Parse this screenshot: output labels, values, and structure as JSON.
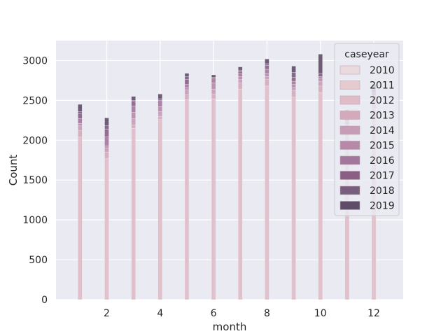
{
  "chart_data": {
    "type": "bar",
    "stacked": true,
    "xlabel": "month",
    "ylabel": "Count",
    "xlim": [
      0.1,
      13.1
    ],
    "ylim": [
      0,
      3250
    ],
    "xticks": [
      2,
      4,
      6,
      8,
      10,
      12
    ],
    "yticks": [
      0,
      500,
      1000,
      1500,
      2000,
      2500,
      3000
    ],
    "grid": true,
    "background": "#eaeaf2",
    "legend": {
      "title": "caseyear",
      "placement": "top-right",
      "entries": [
        "2010",
        "2011",
        "2012",
        "2013",
        "2014",
        "2015",
        "2016",
        "2017",
        "2018",
        "2019"
      ]
    },
    "colors": [
      "#ead9de",
      "#e5cad0",
      "#dfbcc7",
      "#d4a9bb",
      "#c79cb7",
      "#b689a9",
      "#a3779d",
      "#8a5f85",
      "#775d7e",
      "#5e4c68"
    ],
    "categories": [
      1,
      2,
      3,
      4,
      5,
      6,
      7,
      8,
      9,
      10,
      11,
      12
    ],
    "series": [
      {
        "name": "2010",
        "values": [
          0,
          0,
          0,
          0,
          0,
          0,
          0,
          0,
          0,
          0,
          0,
          0
        ]
      },
      {
        "name": "2011",
        "values": [
          0,
          0,
          0,
          0,
          0,
          0,
          0,
          0,
          0,
          0,
          0,
          0
        ]
      },
      {
        "name": "2012",
        "values": [
          2040,
          1770,
          2150,
          2260,
          2510,
          2520,
          2640,
          2680,
          2540,
          2600,
          2100,
          2400
        ]
      },
      {
        "name": "2013",
        "values": [
          80,
          80,
          40,
          40,
          60,
          60,
          80,
          80,
          80,
          80,
          60,
          80
        ]
      },
      {
        "name": "2014",
        "values": [
          60,
          50,
          80,
          60,
          60,
          60,
          40,
          40,
          40,
          60,
          40,
          40
        ]
      },
      {
        "name": "2015",
        "values": [
          30,
          30,
          80,
          60,
          30,
          80,
          40,
          40,
          40,
          40,
          40,
          40
        ]
      },
      {
        "name": "2016",
        "values": [
          60,
          110,
          80,
          60,
          40,
          50,
          40,
          50,
          40,
          20,
          40,
          40
        ]
      },
      {
        "name": "2017",
        "values": [
          60,
          100,
          50,
          20,
          60,
          20,
          20,
          50,
          50,
          0,
          40,
          40
        ]
      },
      {
        "name": "2018",
        "values": [
          30,
          40,
          20,
          20,
          40,
          0,
          20,
          20,
          60,
          40,
          20,
          20
        ]
      },
      {
        "name": "2019",
        "values": [
          90,
          100,
          50,
          60,
          40,
          30,
          40,
          60,
          80,
          240,
          40,
          40
        ]
      }
    ]
  }
}
